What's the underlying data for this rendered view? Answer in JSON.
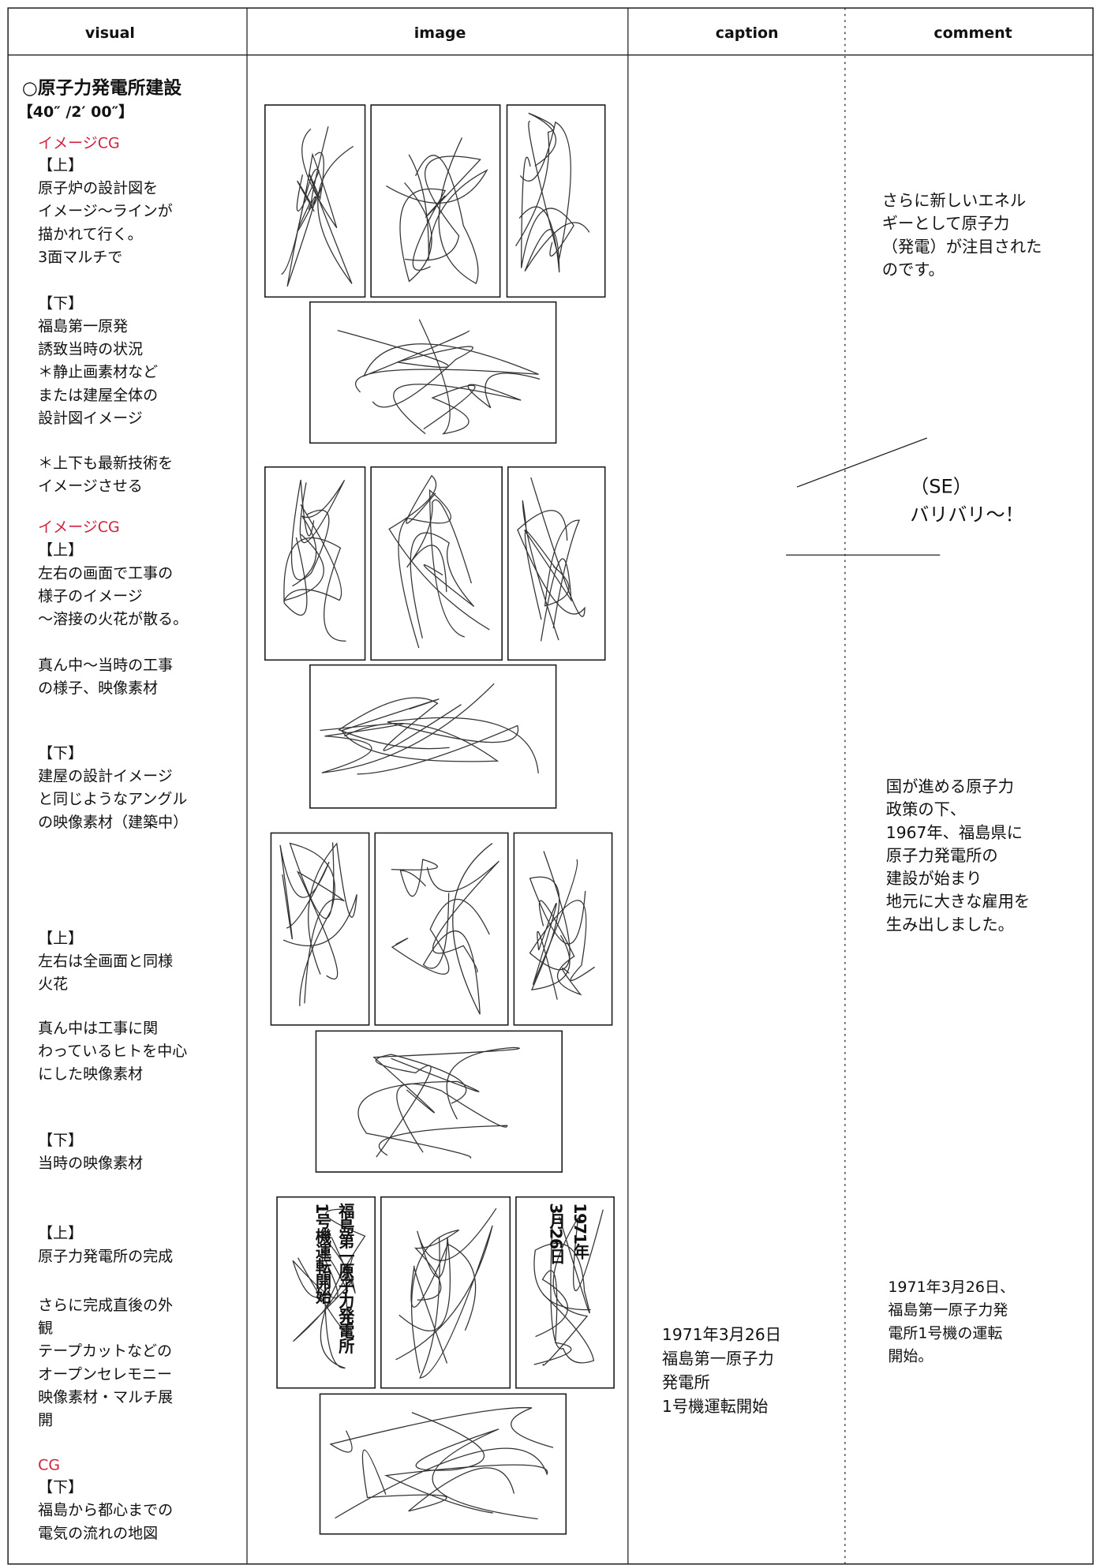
{
  "header": {
    "visual": "visual",
    "image": "image",
    "caption": "caption",
    "comment": "comment"
  },
  "visual": {
    "title": "○原子力発電所建設",
    "timing": "【40″ /2′ 00″】",
    "blocks": [
      {
        "cg": "イメージCG"
      },
      {
        "lines": [
          "【上】",
          "原子炉の設計図を",
          "イメージ～ラインが",
          "描かれて行く。",
          "3面マルチで"
        ]
      },
      {
        "lines": [
          "【下】",
          "福島第一原発",
          "誘致当時の状況",
          "＊静止画素材など",
          "または建屋全体の",
          "設計図イメージ"
        ]
      },
      {
        "lines": [
          "＊上下も最新技術を",
          "イメージさせる"
        ]
      },
      {
        "cg": "イメージCG"
      },
      {
        "lines": [
          "【上】",
          "左右の画面で工事の",
          "様子のイメージ",
          "～溶接の火花が散る。"
        ]
      },
      {
        "lines": [
          "真ん中～当時の工事",
          "の様子、映像素材"
        ]
      },
      {
        "lines": [
          "【下】",
          "建屋の設計イメージ",
          "と同じようなアングル",
          "の映像素材（建築中）"
        ]
      },
      {
        "lines": [
          "【上】",
          "左右は全画面と同様",
          "火花"
        ]
      },
      {
        "lines": [
          "真ん中は工事に関",
          "わっているヒトを中心",
          "にした映像素材"
        ]
      },
      {
        "lines": [
          "【下】",
          "当時の映像素材"
        ]
      },
      {
        "lines": [
          "【上】",
          "原子力発電所の完成"
        ]
      },
      {
        "lines": [
          "さらに完成直後の外",
          "観",
          "テープカットなどの",
          "オープンセレモニー",
          "映像素材・マルチ展",
          "開"
        ]
      },
      {
        "cg": "CG"
      },
      {
        "lines": [
          "【下】",
          "福島から都心までの",
          "電気の流れの地図"
        ]
      }
    ]
  },
  "image": {
    "left_frame": [
      "福島第一原子力発電所",
      "1号機運転開始"
    ],
    "right_frame": [
      "1971年",
      "3月26日"
    ]
  },
  "caption": {
    "lines": [
      "1971年3月26日",
      "福島第一原子力",
      "発電所",
      "1号機運転開始"
    ]
  },
  "comment": {
    "blocks": [
      {
        "lines": [
          "さらに新しいエネル",
          "ギーとして原子力",
          "（発電）が注目された",
          "のです。"
        ]
      },
      {
        "lines": [
          "（SE）",
          "バリバリ～！"
        ]
      },
      {
        "lines": [
          "国が進める原子力",
          "政策の下、",
          "1967年、福島県に",
          "原子力発電所の",
          "建設が始まり",
          "地元に大きな雇用を",
          "生み出しました。"
        ]
      },
      {
        "lines": [
          "1971年3月26日、",
          "福島第一原子力発",
          "電所1号機の運転",
          "開始。"
        ]
      }
    ]
  }
}
